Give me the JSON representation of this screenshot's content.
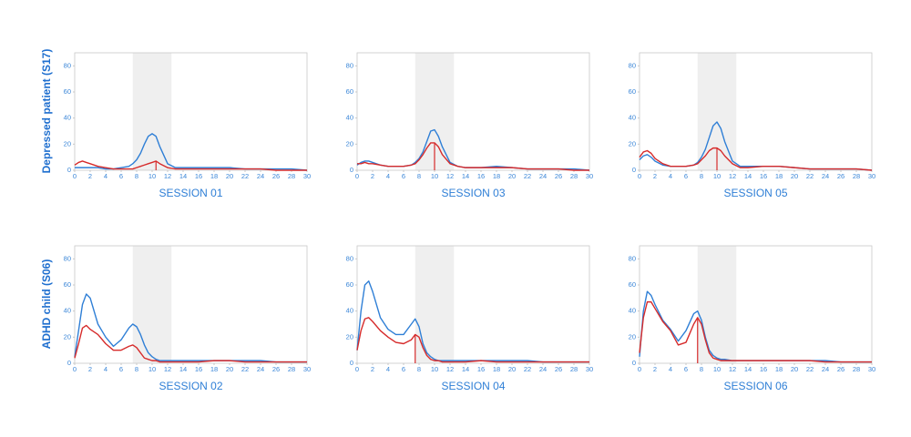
{
  "row_labels": [
    "Depressed patient (S17)",
    "ADHD child (S06)"
  ],
  "chart_data": [
    {
      "type": "line",
      "title": "SESSION 01",
      "xlim": [
        0,
        30
      ],
      "ylim": [
        0,
        90
      ],
      "xticks": [
        0,
        2,
        4,
        6,
        8,
        10,
        12,
        14,
        16,
        18,
        20,
        22,
        24,
        26,
        28,
        30
      ],
      "yticks": [
        0,
        20,
        40,
        60,
        80
      ],
      "shade": [
        7.5,
        12.5
      ],
      "x": [
        0,
        0.5,
        1,
        1.5,
        2,
        3,
        4,
        5,
        6,
        7,
        7.5,
        8,
        8.5,
        9,
        9.5,
        10,
        10.5,
        11,
        12,
        13,
        14,
        16,
        18,
        20,
        22,
        24,
        26,
        28,
        30
      ],
      "series": [
        {
          "color": "#2f7fd6",
          "values": [
            2,
            2,
            2,
            2,
            2,
            2,
            1,
            1,
            2,
            3,
            5,
            8,
            13,
            20,
            26,
            28,
            26,
            18,
            5,
            2,
            2,
            2,
            2,
            2,
            1,
            1,
            1,
            1,
            0
          ]
        },
        {
          "color": "#d62b2b",
          "values": [
            4,
            6,
            7,
            6,
            5,
            3,
            2,
            1,
            1,
            1,
            1,
            2,
            3,
            4,
            5,
            6,
            7,
            5,
            2,
            1,
            1,
            1,
            1,
            1,
            1,
            1,
            0,
            0,
            0
          ]
        }
      ],
      "peak_line": {
        "x": 10.5,
        "y": 7
      }
    },
    {
      "type": "line",
      "title": "SESSION 03",
      "xlim": [
        0,
        30
      ],
      "ylim": [
        0,
        90
      ],
      "xticks": [
        0,
        2,
        4,
        6,
        8,
        10,
        12,
        14,
        16,
        18,
        20,
        22,
        24,
        26,
        28,
        30
      ],
      "yticks": [
        0,
        20,
        40,
        60,
        80
      ],
      "shade": [
        7.5,
        12.5
      ],
      "x": [
        0,
        0.5,
        1,
        1.5,
        2,
        3,
        4,
        5,
        6,
        7,
        7.5,
        8,
        8.5,
        9,
        9.5,
        10,
        10.5,
        11,
        12,
        13,
        14,
        16,
        18,
        20,
        22,
        24,
        26,
        28,
        30
      ],
      "series": [
        {
          "color": "#2f7fd6",
          "values": [
            4,
            6,
            7,
            7,
            6,
            4,
            3,
            3,
            3,
            4,
            6,
            9,
            14,
            22,
            30,
            31,
            26,
            18,
            6,
            3,
            2,
            2,
            3,
            2,
            1,
            1,
            1,
            1,
            0
          ]
        },
        {
          "color": "#d62b2b",
          "values": [
            5,
            5,
            6,
            5,
            5,
            4,
            3,
            3,
            3,
            4,
            5,
            8,
            12,
            17,
            21,
            21,
            18,
            12,
            5,
            3,
            2,
            2,
            2,
            2,
            1,
            1,
            1,
            0,
            0
          ]
        }
      ],
      "peak_line": {
        "x": 10,
        "y": 21
      }
    },
    {
      "type": "line",
      "title": "SESSION 05",
      "xlim": [
        0,
        30
      ],
      "ylim": [
        0,
        90
      ],
      "xticks": [
        0,
        2,
        4,
        6,
        8,
        10,
        12,
        14,
        16,
        18,
        20,
        22,
        24,
        26,
        28,
        30
      ],
      "yticks": [
        0,
        20,
        40,
        60,
        80
      ],
      "shade": [
        7.5,
        12.5
      ],
      "x": [
        0,
        0.5,
        1,
        1.5,
        2,
        3,
        4,
        5,
        6,
        7,
        7.5,
        8,
        8.5,
        9,
        9.5,
        10,
        10.5,
        11,
        12,
        13,
        14,
        16,
        18,
        20,
        22,
        24,
        26,
        28,
        30
      ],
      "series": [
        {
          "color": "#2f7fd6",
          "values": [
            8,
            11,
            12,
            10,
            7,
            4,
            3,
            3,
            3,
            4,
            6,
            10,
            16,
            25,
            34,
            37,
            32,
            22,
            7,
            3,
            3,
            3,
            3,
            2,
            1,
            1,
            1,
            1,
            0
          ]
        },
        {
          "color": "#d62b2b",
          "values": [
            10,
            14,
            15,
            13,
            9,
            5,
            3,
            3,
            3,
            4,
            5,
            8,
            11,
            15,
            17,
            17,
            15,
            11,
            5,
            2,
            2,
            3,
            3,
            2,
            1,
            1,
            1,
            1,
            0
          ]
        }
      ],
      "peak_line": {
        "x": 10,
        "y": 17
      }
    },
    {
      "type": "line",
      "title": "SESSION 02",
      "xlim": [
        0,
        30
      ],
      "ylim": [
        0,
        90
      ],
      "xticks": [
        0,
        2,
        4,
        6,
        8,
        10,
        12,
        14,
        16,
        18,
        20,
        22,
        24,
        26,
        28,
        30
      ],
      "yticks": [
        0,
        20,
        40,
        60,
        80
      ],
      "shade": [
        7.5,
        12.5
      ],
      "x": [
        0,
        0.5,
        1,
        1.5,
        2,
        3,
        4,
        5,
        6,
        7,
        7.5,
        8,
        8.5,
        9,
        9.5,
        10,
        10.5,
        11,
        12,
        13,
        14,
        16,
        18,
        20,
        22,
        24,
        26,
        28,
        30
      ],
      "series": [
        {
          "color": "#2f7fd6",
          "values": [
            5,
            25,
            45,
            53,
            50,
            30,
            20,
            13,
            18,
            27,
            30,
            28,
            22,
            14,
            8,
            5,
            3,
            2,
            2,
            2,
            2,
            2,
            2,
            2,
            2,
            2,
            1,
            1,
            1
          ]
        },
        {
          "color": "#d62b2b",
          "values": [
            4,
            15,
            27,
            29,
            26,
            22,
            15,
            10,
            10,
            13,
            14,
            12,
            8,
            4,
            3,
            2,
            2,
            1,
            1,
            1,
            1,
            1,
            2,
            2,
            1,
            1,
            1,
            1,
            1
          ]
        }
      ]
    },
    {
      "type": "line",
      "title": "SESSION 04",
      "xlim": [
        0,
        30
      ],
      "ylim": [
        0,
        90
      ],
      "xticks": [
        0,
        2,
        4,
        6,
        8,
        10,
        12,
        14,
        16,
        18,
        20,
        22,
        24,
        26,
        28,
        30
      ],
      "yticks": [
        0,
        20,
        40,
        60,
        80
      ],
      "shade": [
        7.5,
        12.5
      ],
      "x": [
        0,
        0.5,
        1,
        1.5,
        2,
        3,
        4,
        5,
        6,
        7,
        7.5,
        8,
        8.5,
        9,
        9.5,
        10,
        10.5,
        11,
        12,
        13,
        14,
        16,
        18,
        20,
        22,
        24,
        26,
        28,
        30
      ],
      "series": [
        {
          "color": "#2f7fd6",
          "values": [
            10,
            40,
            60,
            63,
            55,
            35,
            26,
            22,
            22,
            30,
            34,
            28,
            15,
            8,
            5,
            3,
            2,
            2,
            2,
            2,
            2,
            2,
            2,
            2,
            2,
            1,
            1,
            1,
            1
          ]
        },
        {
          "color": "#d62b2b",
          "values": [
            10,
            25,
            34,
            35,
            32,
            25,
            20,
            16,
            15,
            18,
            22,
            20,
            12,
            6,
            3,
            2,
            2,
            1,
            1,
            1,
            1,
            2,
            1,
            1,
            1,
            1,
            1,
            1,
            1
          ]
        }
      ],
      "peak_line": {
        "x": 7.5,
        "y": 22
      }
    },
    {
      "type": "line",
      "title": "SESSION 06",
      "xlim": [
        0,
        30
      ],
      "ylim": [
        0,
        90
      ],
      "xticks": [
        0,
        2,
        4,
        6,
        8,
        10,
        12,
        14,
        16,
        18,
        20,
        22,
        24,
        26,
        28,
        30
      ],
      "yticks": [
        0,
        20,
        40,
        60,
        80
      ],
      "shade": [
        7.5,
        12.5
      ],
      "x": [
        0,
        0.5,
        1,
        1.5,
        2,
        3,
        4,
        5,
        6,
        7,
        7.5,
        8,
        8.5,
        9,
        9.5,
        10,
        10.5,
        11,
        12,
        13,
        14,
        16,
        18,
        20,
        22,
        24,
        26,
        28,
        30
      ],
      "series": [
        {
          "color": "#2f7fd6",
          "values": [
            5,
            40,
            55,
            52,
            45,
            33,
            26,
            17,
            25,
            38,
            40,
            33,
            20,
            10,
            6,
            4,
            3,
            3,
            2,
            2,
            2,
            2,
            2,
            2,
            2,
            2,
            1,
            1,
            1
          ]
        },
        {
          "color": "#d62b2b",
          "values": [
            8,
            35,
            47,
            47,
            42,
            32,
            25,
            14,
            16,
            30,
            35,
            30,
            18,
            8,
            4,
            3,
            2,
            2,
            2,
            2,
            2,
            2,
            2,
            2,
            2,
            1,
            1,
            1,
            1
          ]
        }
      ],
      "peak_line": {
        "x": 7.5,
        "y": 35
      }
    }
  ]
}
